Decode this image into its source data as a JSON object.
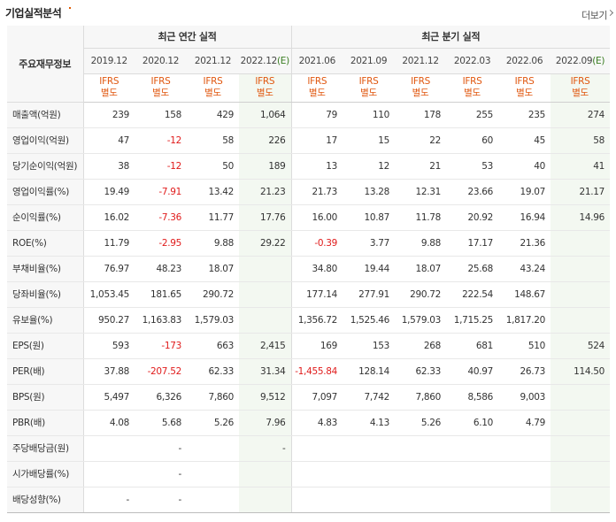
{
  "header": {
    "title": "기업실적분석",
    "more_label": "더보기"
  },
  "table": {
    "row_header_label": "주요재무정보",
    "group_annual": "최근 연간 실적",
    "group_quarter": "최근 분기 실적",
    "periods": [
      "2019.12",
      "2020.12",
      "2021.12",
      "2022.12",
      "2021.06",
      "2021.09",
      "2021.12",
      "2022.03",
      "2022.06",
      "2022.09"
    ],
    "estimate_mark": "(E)",
    "basis_line1": "IFRS",
    "basis_line2": "별도",
    "rows": [
      {
        "label": "매출액(억원)",
        "values": [
          "239",
          "158",
          "429",
          "1,064",
          "79",
          "110",
          "178",
          "255",
          "235",
          "274"
        ]
      },
      {
        "label": "영업이익(억원)",
        "values": [
          "47",
          "-12",
          "58",
          "226",
          "17",
          "15",
          "22",
          "60",
          "45",
          "58"
        ]
      },
      {
        "label": "당기순이익(억원)",
        "values": [
          "38",
          "-12",
          "50",
          "189",
          "13",
          "12",
          "21",
          "53",
          "40",
          "41"
        ]
      },
      {
        "label": "영업이익률(%)",
        "values": [
          "19.49",
          "-7.91",
          "13.42",
          "21.23",
          "21.73",
          "13.28",
          "12.31",
          "23.66",
          "19.07",
          "21.17"
        ]
      },
      {
        "label": "순이익률(%)",
        "values": [
          "16.02",
          "-7.36",
          "11.77",
          "17.76",
          "16.00",
          "10.87",
          "11.78",
          "20.92",
          "16.94",
          "14.96"
        ]
      },
      {
        "label": "ROE(%)",
        "values": [
          "11.79",
          "-2.95",
          "9.88",
          "29.22",
          "-0.39",
          "3.77",
          "9.88",
          "17.17",
          "21.36",
          ""
        ]
      },
      {
        "label": "부채비율(%)",
        "values": [
          "76.97",
          "48.23",
          "18.07",
          "",
          "34.80",
          "19.44",
          "18.07",
          "25.68",
          "43.24",
          ""
        ]
      },
      {
        "label": "당좌비율(%)",
        "values": [
          "1,053.45",
          "181.65",
          "290.72",
          "",
          "177.14",
          "277.91",
          "290.72",
          "222.54",
          "148.67",
          ""
        ]
      },
      {
        "label": "유보율(%)",
        "values": [
          "950.27",
          "1,163.83",
          "1,579.03",
          "",
          "1,356.72",
          "1,525.46",
          "1,579.03",
          "1,715.25",
          "1,817.20",
          ""
        ]
      },
      {
        "label": "EPS(원)",
        "values": [
          "593",
          "-173",
          "663",
          "2,415",
          "169",
          "153",
          "268",
          "681",
          "510",
          "524"
        ]
      },
      {
        "label": "PER(배)",
        "values": [
          "37.88",
          "-207.52",
          "62.33",
          "31.34",
          "-1,455.84",
          "128.14",
          "62.33",
          "40.97",
          "26.73",
          "114.50"
        ]
      },
      {
        "label": "BPS(원)",
        "values": [
          "5,497",
          "6,326",
          "7,860",
          "9,512",
          "7,097",
          "7,742",
          "7,860",
          "8,586",
          "9,003",
          ""
        ]
      },
      {
        "label": "PBR(배)",
        "values": [
          "4.08",
          "5.68",
          "5.26",
          "7.96",
          "4.83",
          "4.13",
          "5.26",
          "6.10",
          "4.79",
          ""
        ]
      },
      {
        "label": "주당배당금(원)",
        "values": [
          "",
          "-",
          "",
          "-",
          "",
          "",
          "",
          "",
          "",
          ""
        ]
      },
      {
        "label": "시가배당률(%)",
        "values": [
          "",
          "-",
          "",
          "",
          "",
          "",
          "",
          "",
          "",
          ""
        ]
      },
      {
        "label": "배당성향(%)",
        "values": [
          "-",
          "-",
          "",
          "",
          "",
          "",
          "",
          "",
          "",
          ""
        ]
      }
    ]
  },
  "colors": {
    "negative": "#e01b1b",
    "basis": "#e0570f",
    "estimate_mark": "#3a7d22",
    "estimate_bg": "#f3f8f1"
  }
}
